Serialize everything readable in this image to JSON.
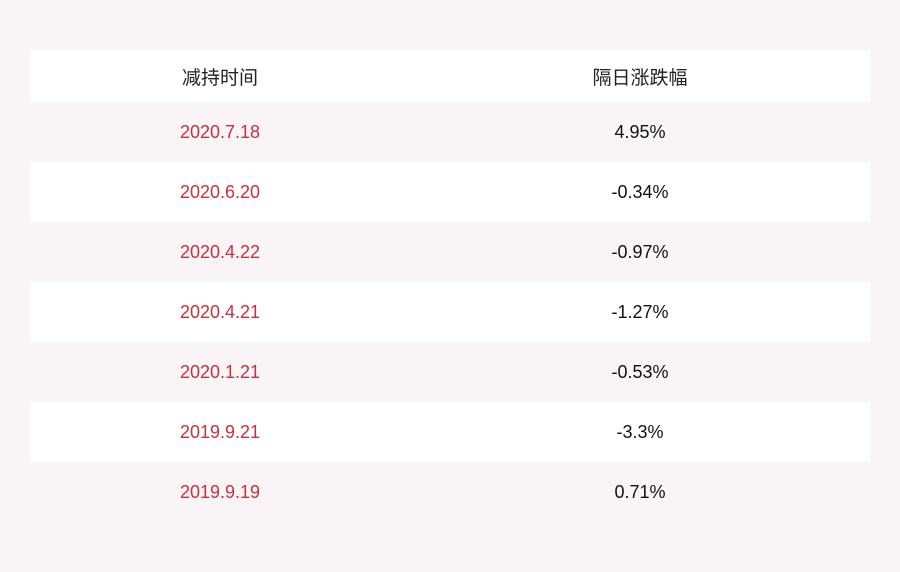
{
  "header": {
    "col1": "减持时间",
    "col2": "隔日涨跌幅"
  },
  "rows": [
    {
      "date": "2020.7.18",
      "change": "4.95%"
    },
    {
      "date": "2020.6.20",
      "change": "-0.34%"
    },
    {
      "date": "2020.4.22",
      "change": "-0.97%"
    },
    {
      "date": "2020.4.21",
      "change": "-1.27%"
    },
    {
      "date": "2020.1.21",
      "change": "-0.53%"
    },
    {
      "date": "2019.9.21",
      "change": "-3.3%"
    },
    {
      "date": "2019.9.19",
      "change": "0.71%"
    }
  ],
  "colors": {
    "date_text": "#c8303f",
    "background": "#f9f5f6",
    "alt_row": "#ffffff"
  }
}
